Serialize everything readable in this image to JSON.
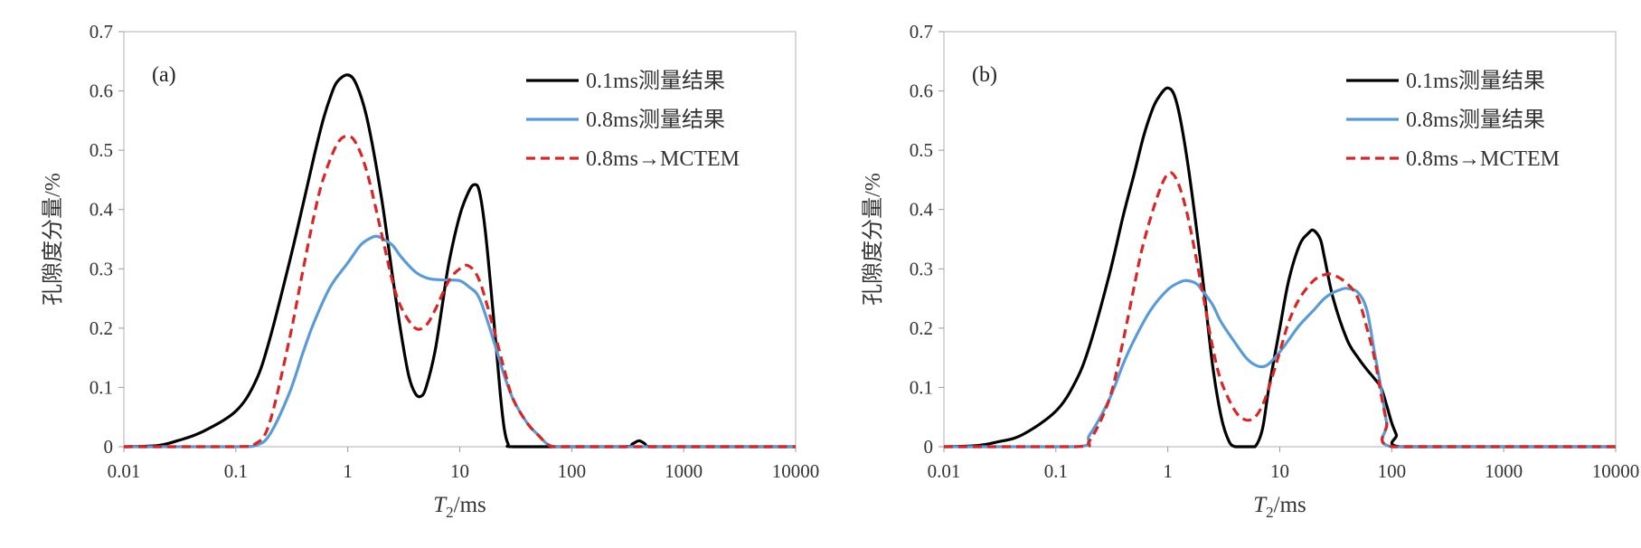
{
  "chart_data": [
    {
      "type": "line",
      "panel_label": "(a)",
      "xlabel": {
        "main": "T",
        "sub": "2",
        "rest": "/ms"
      },
      "ylabel": "孔隙度分量/%",
      "x_scale": "log",
      "xlim": [
        0.01,
        10000
      ],
      "ylim": [
        0,
        0.7
      ],
      "x_ticks": [
        "0.01",
        "0.1",
        "1",
        "10",
        "100",
        "1000",
        "10000"
      ],
      "y_ticks": [
        "0",
        "0.1",
        "0.2",
        "0.3",
        "0.4",
        "0.5",
        "0.6",
        "0.7"
      ],
      "grid": false,
      "legend_position": "top-right",
      "series": [
        {
          "name": "0.1ms测量结果",
          "color": "#000000",
          "dash": "solid",
          "x": [
            0.01,
            0.02,
            0.03,
            0.05,
            0.1,
            0.15,
            0.2,
            0.3,
            0.4,
            0.5,
            0.6,
            0.7,
            0.8,
            1.0,
            1.2,
            1.5,
            2.0,
            2.5,
            3.0,
            3.5,
            4.0,
            4.5,
            5.0,
            6.0,
            7.0,
            8.0,
            10,
            12,
            13.5,
            15,
            17,
            20,
            23,
            25,
            27,
            30,
            100,
            300,
            350,
            400,
            450,
            500,
            1000,
            10000
          ],
          "y": [
            0,
            0.002,
            0.01,
            0.025,
            0.06,
            0.11,
            0.18,
            0.31,
            0.41,
            0.49,
            0.55,
            0.59,
            0.615,
            0.627,
            0.61,
            0.55,
            0.42,
            0.29,
            0.19,
            0.12,
            0.09,
            0.085,
            0.1,
            0.16,
            0.24,
            0.31,
            0.39,
            0.43,
            0.442,
            0.43,
            0.36,
            0.22,
            0.09,
            0.03,
            0.005,
            0,
            0,
            0,
            0.005,
            0.01,
            0.005,
            0,
            0,
            0
          ]
        },
        {
          "name": "0.8ms测量结果",
          "color": "#5b9bd5",
          "dash": "solid",
          "x": [
            0.01,
            0.1,
            0.15,
            0.2,
            0.3,
            0.4,
            0.5,
            0.7,
            1.0,
            1.3,
            1.6,
            1.8,
            2.0,
            2.5,
            3.0,
            4.0,
            5.0,
            6.0,
            8.0,
            10,
            12,
            15,
            20,
            25,
            30,
            40,
            50,
            60,
            70,
            100,
            1000,
            10000
          ],
          "y": [
            0,
            0,
            0.002,
            0.02,
            0.09,
            0.16,
            0.21,
            0.27,
            0.31,
            0.34,
            0.352,
            0.355,
            0.352,
            0.34,
            0.32,
            0.295,
            0.285,
            0.282,
            0.281,
            0.28,
            0.27,
            0.25,
            0.18,
            0.12,
            0.08,
            0.04,
            0.02,
            0.005,
            0,
            0,
            0,
            0
          ]
        },
        {
          "name": "0.8ms→MCTEM",
          "color": "#d62728",
          "dash": "dashed",
          "x": [
            0.01,
            0.1,
            0.15,
            0.2,
            0.3,
            0.4,
            0.5,
            0.6,
            0.8,
            1.0,
            1.2,
            1.5,
            2.0,
            2.5,
            3.0,
            4.0,
            5.0,
            6.0,
            8.0,
            10,
            12,
            15,
            20,
            25,
            30,
            40,
            50,
            60,
            70,
            100,
            1000,
            10000
          ],
          "y": [
            0,
            0,
            0.005,
            0.04,
            0.18,
            0.3,
            0.39,
            0.45,
            0.51,
            0.524,
            0.51,
            0.46,
            0.36,
            0.28,
            0.235,
            0.2,
            0.205,
            0.23,
            0.28,
            0.3,
            0.305,
            0.28,
            0.2,
            0.13,
            0.08,
            0.04,
            0.02,
            0.005,
            0,
            0,
            0,
            0
          ]
        }
      ]
    },
    {
      "type": "line",
      "panel_label": "(b)",
      "xlabel": {
        "main": "T",
        "sub": "2",
        "rest": "/ms"
      },
      "ylabel": "孔隙度分量/%",
      "x_scale": "log",
      "xlim": [
        0.01,
        10000
      ],
      "ylim": [
        0,
        0.7
      ],
      "x_ticks": [
        "0.01",
        "0.1",
        "1",
        "10",
        "100",
        "1000",
        "10000"
      ],
      "y_ticks": [
        "0",
        "0.1",
        "0.2",
        "0.3",
        "0.4",
        "0.5",
        "0.6",
        "0.7"
      ],
      "grid": false,
      "legend_position": "top-right",
      "series": [
        {
          "name": "0.1ms测量结果",
          "color": "#000000",
          "dash": "solid",
          "x": [
            0.01,
            0.02,
            0.03,
            0.05,
            0.1,
            0.15,
            0.2,
            0.3,
            0.4,
            0.5,
            0.6,
            0.7,
            0.8,
            1.0,
            1.2,
            1.5,
            2.0,
            2.5,
            3.0,
            3.5,
            4.0,
            5.0,
            6.0,
            7.0,
            8.0,
            10,
            12,
            15,
            18,
            20,
            23,
            25,
            30,
            40,
            50,
            60,
            70,
            80,
            90,
            100,
            110,
            120,
            1000,
            10000
          ],
          "y": [
            0,
            0.002,
            0.008,
            0.02,
            0.06,
            0.11,
            0.17,
            0.29,
            0.39,
            0.46,
            0.52,
            0.56,
            0.585,
            0.605,
            0.58,
            0.48,
            0.3,
            0.14,
            0.05,
            0.01,
            0,
            0,
            0,
            0.03,
            0.1,
            0.2,
            0.28,
            0.34,
            0.36,
            0.365,
            0.35,
            0.32,
            0.25,
            0.18,
            0.15,
            0.13,
            0.115,
            0.1,
            0.07,
            0.04,
            0.02,
            0,
            0,
            0
          ]
        },
        {
          "name": "0.8ms测量结果",
          "color": "#5b9bd5",
          "dash": "solid",
          "x": [
            0.01,
            0.15,
            0.2,
            0.3,
            0.4,
            0.5,
            0.7,
            1.0,
            1.3,
            1.5,
            1.8,
            2.0,
            2.5,
            3.0,
            4.0,
            5.0,
            6.0,
            7.0,
            8.0,
            10,
            12,
            15,
            20,
            25,
            30,
            35,
            40,
            50,
            60,
            70,
            80,
            90,
            100,
            1000,
            10000
          ],
          "y": [
            0,
            0,
            0.02,
            0.08,
            0.14,
            0.18,
            0.23,
            0.265,
            0.278,
            0.28,
            0.275,
            0.265,
            0.24,
            0.21,
            0.175,
            0.15,
            0.138,
            0.135,
            0.14,
            0.16,
            0.18,
            0.205,
            0.23,
            0.25,
            0.26,
            0.265,
            0.267,
            0.26,
            0.23,
            0.16,
            0.1,
            0.04,
            0,
            0,
            0
          ]
        },
        {
          "name": "0.8ms→MCTEM",
          "color": "#d62728",
          "dash": "dashed",
          "x": [
            0.01,
            0.15,
            0.2,
            0.3,
            0.4,
            0.5,
            0.6,
            0.8,
            1.0,
            1.2,
            1.5,
            2.0,
            2.5,
            3.0,
            4.0,
            5.0,
            6.0,
            7.0,
            8.0,
            10,
            12,
            15,
            20,
            25,
            30,
            40,
            50,
            60,
            70,
            80,
            90,
            100,
            1000,
            10000
          ],
          "y": [
            0,
            0,
            0.01,
            0.08,
            0.18,
            0.27,
            0.34,
            0.42,
            0.46,
            0.45,
            0.39,
            0.27,
            0.17,
            0.11,
            0.06,
            0.045,
            0.05,
            0.07,
            0.1,
            0.16,
            0.21,
            0.25,
            0.28,
            0.29,
            0.29,
            0.275,
            0.25,
            0.2,
            0.15,
            0.09,
            0.04,
            0,
            0,
            0
          ]
        }
      ]
    }
  ]
}
